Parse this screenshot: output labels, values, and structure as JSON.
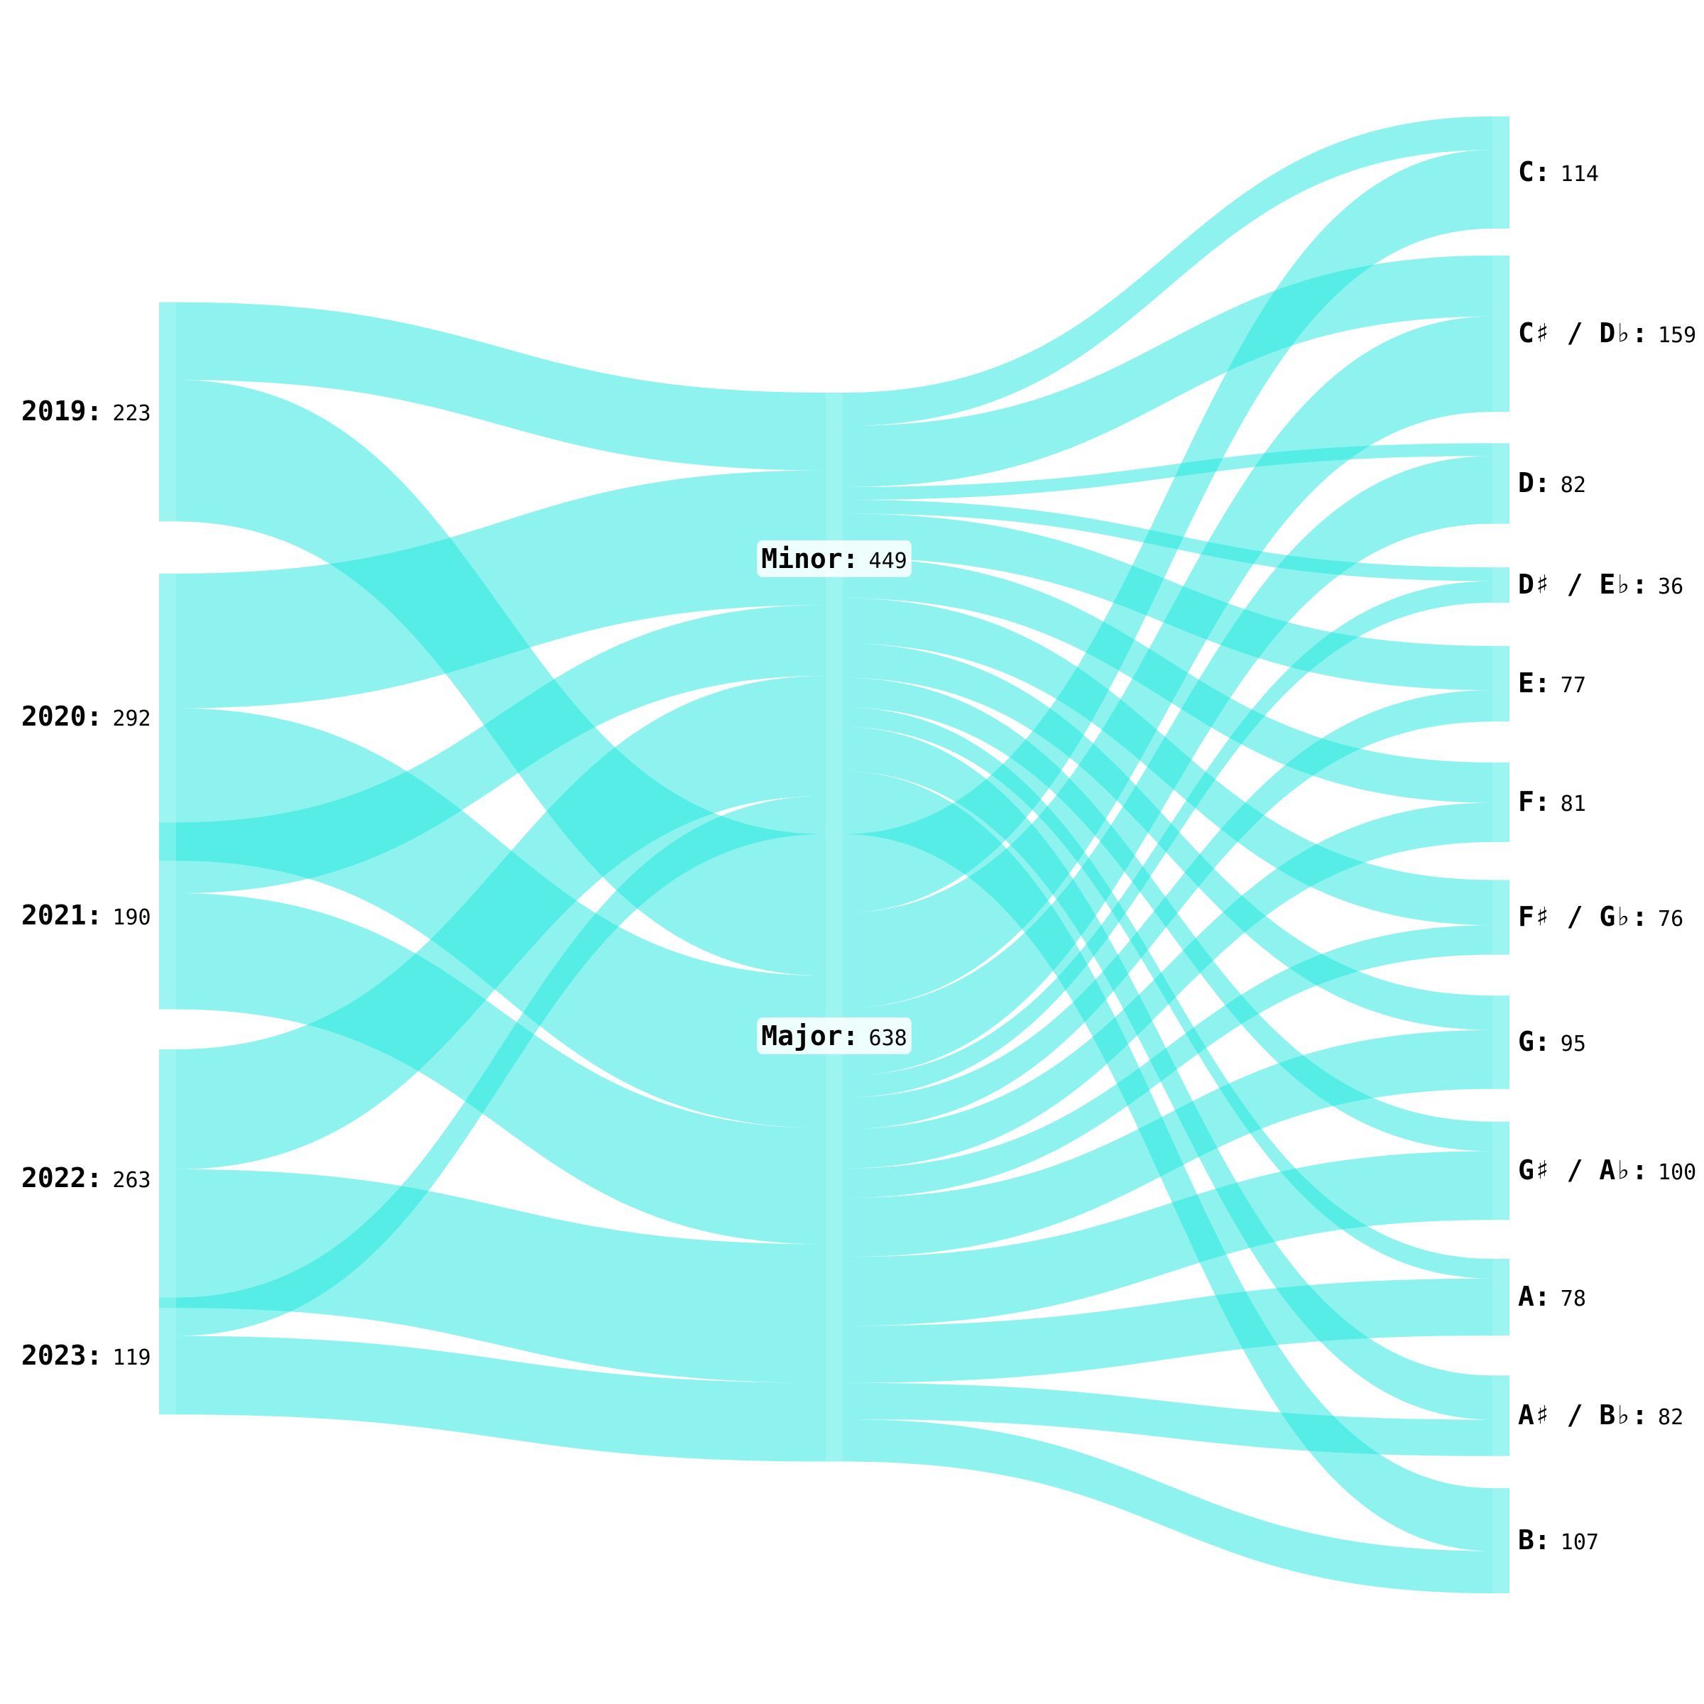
{
  "chart_data": {
    "type": "sankey",
    "colors": {
      "link": "#1ee8e0",
      "node": "#5ceee8",
      "background": "#ffffff"
    },
    "stages": [
      {
        "id": "year",
        "nodes": [
          {
            "name": "2019",
            "value": "223"
          },
          {
            "name": "2020",
            "value": "292"
          },
          {
            "name": "2021",
            "value": "190"
          },
          {
            "name": "2022",
            "value": "263"
          },
          {
            "name": "2023",
            "value": "119"
          }
        ]
      },
      {
        "id": "mode",
        "nodes": [
          {
            "name": "Minor",
            "value": "449"
          },
          {
            "name": "Major",
            "value": "638"
          }
        ]
      },
      {
        "id": "key",
        "nodes": [
          {
            "name": "C",
            "value": "114"
          },
          {
            "name": "C♯ / D♭",
            "value": "159"
          },
          {
            "name": "D",
            "value": "82"
          },
          {
            "name": "D♯ / E♭",
            "value": "36"
          },
          {
            "name": "E",
            "value": "77"
          },
          {
            "name": "F",
            "value": "81"
          },
          {
            "name": "F♯ / G♭",
            "value": "76"
          },
          {
            "name": "G",
            "value": "95"
          },
          {
            "name": "G♯ / A♭",
            "value": "100"
          },
          {
            "name": "A",
            "value": "78"
          },
          {
            "name": "A♯ / B♭",
            "value": "82"
          },
          {
            "name": "B",
            "value": "107"
          }
        ]
      }
    ],
    "links_year_mode": [
      {
        "source": "2019",
        "target": "Minor",
        "value": 79
      },
      {
        "source": "2019",
        "target": "Major",
        "value": 144
      },
      {
        "source": "2020",
        "target": "Minor",
        "value": 137
      },
      {
        "source": "2020",
        "target": "Major",
        "value": 155
      },
      {
        "source": "2021",
        "target": "Minor",
        "value": 72
      },
      {
        "source": "2021",
        "target": "Major",
        "value": 118
      },
      {
        "source": "2022",
        "target": "Minor",
        "value": 122
      },
      {
        "source": "2022",
        "target": "Major",
        "value": 141
      },
      {
        "source": "2023",
        "target": "Minor",
        "value": 39
      },
      {
        "source": "2023",
        "target": "Major",
        "value": 80
      }
    ],
    "links_mode_key": [
      {
        "source": "Minor",
        "target": "C",
        "value": 34
      },
      {
        "source": "Minor",
        "target": "C♯ / D♭",
        "value": 62
      },
      {
        "source": "Minor",
        "target": "D",
        "value": 13
      },
      {
        "source": "Minor",
        "target": "D♯ / E♭",
        "value": 14
      },
      {
        "source": "Minor",
        "target": "E",
        "value": 45
      },
      {
        "source": "Minor",
        "target": "F",
        "value": 41
      },
      {
        "source": "Minor",
        "target": "F♯ / G♭",
        "value": 46
      },
      {
        "source": "Minor",
        "target": "G",
        "value": 35
      },
      {
        "source": "Minor",
        "target": "G♯ / A♭",
        "value": 30
      },
      {
        "source": "Minor",
        "target": "A",
        "value": 20
      },
      {
        "source": "Minor",
        "target": "A♯ / B♭",
        "value": 45
      },
      {
        "source": "Minor",
        "target": "B",
        "value": 64
      },
      {
        "source": "Major",
        "target": "C",
        "value": 80
      },
      {
        "source": "Major",
        "target": "C♯ / D♭",
        "value": 97
      },
      {
        "source": "Major",
        "target": "D",
        "value": 69
      },
      {
        "source": "Major",
        "target": "D♯ / E♭",
        "value": 22
      },
      {
        "source": "Major",
        "target": "E",
        "value": 32
      },
      {
        "source": "Major",
        "target": "F",
        "value": 40
      },
      {
        "source": "Major",
        "target": "F♯ / G♭",
        "value": 30
      },
      {
        "source": "Major",
        "target": "G",
        "value": 60
      },
      {
        "source": "Major",
        "target": "G♯ / A♭",
        "value": 70
      },
      {
        "source": "Major",
        "target": "A",
        "value": 58
      },
      {
        "source": "Major",
        "target": "A♯ / B♭",
        "value": 37
      },
      {
        "source": "Major",
        "target": "B",
        "value": 43
      }
    ]
  }
}
